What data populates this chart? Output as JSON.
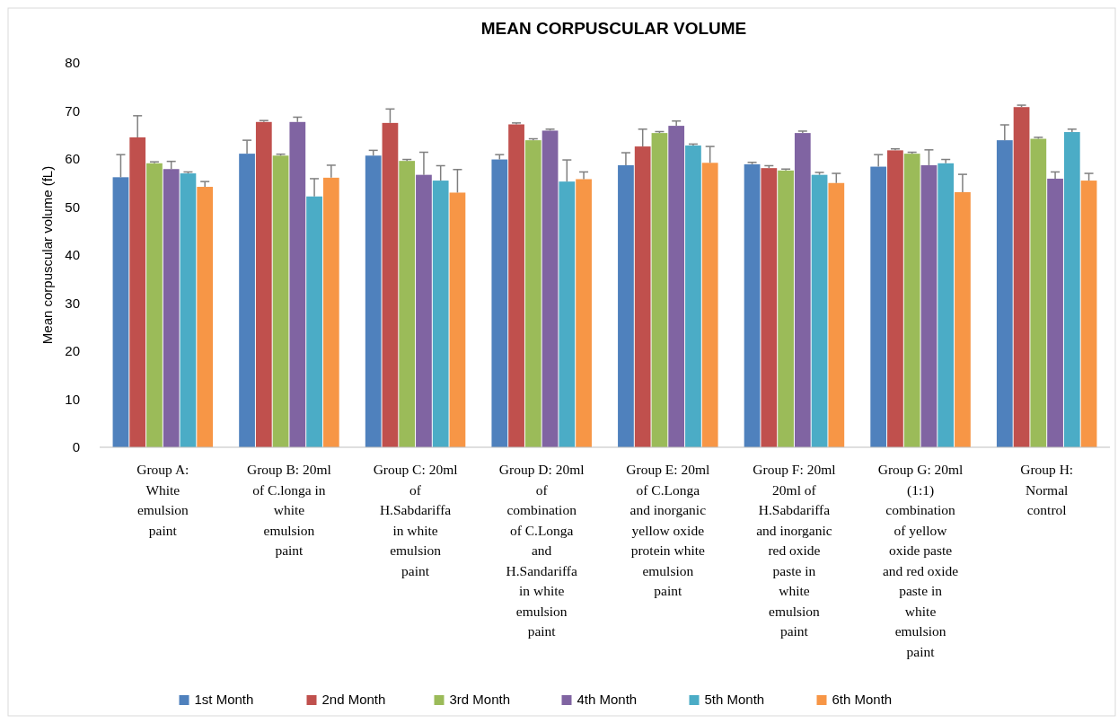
{
  "chart_data": {
    "type": "bar",
    "title": "MEAN CORPUSCULAR VOLUME",
    "ylabel": "Mean corpuscular volume (fL)",
    "categories": [
      "Group A: White emulsion paint",
      "Group B: 20ml of C.longa in white emulsion paint",
      "Group C: 20ml of H.Sabdariffa in white emulsion paint",
      "Group D: 20ml of combination of C.Longa and H.Sandariffa in white emulsion paint",
      "Group E: 20ml of C.Longa and inorganic yellow oxide protein white emulsion paint",
      "Group F: 20ml 20ml of H.Sabdariffa and inorganic red oxide paste in white emulsion paint",
      "Group G: 20ml (1:1) combination of yellow oxide paste and red oxide paste in white emulsion paint",
      "Group H: Normal control"
    ],
    "series": [
      {
        "name": "1st Month",
        "color": "#4f81bd",
        "values": [
          56.2,
          61.1,
          60.7,
          59.9,
          58.7,
          58.9,
          58.4,
          63.9
        ],
        "errors": [
          4.7,
          2.8,
          1.1,
          1.0,
          2.6,
          0.4,
          2.5,
          3.2
        ]
      },
      {
        "name": "2nd Month",
        "color": "#c0504d",
        "values": [
          64.5,
          67.7,
          67.5,
          67.2,
          62.6,
          58.1,
          61.8,
          70.8
        ],
        "errors": [
          4.5,
          0.3,
          2.9,
          0.3,
          3.6,
          0.5,
          0.3,
          0.4
        ]
      },
      {
        "name": "3rd Month",
        "color": "#9bbb59",
        "values": [
          59.1,
          60.7,
          59.6,
          63.9,
          65.4,
          57.6,
          61.1,
          64.2
        ],
        "errors": [
          0.3,
          0.3,
          0.3,
          0.3,
          0.3,
          0.3,
          0.3,
          0.3
        ]
      },
      {
        "name": "4th Month",
        "color": "#8064a2",
        "values": [
          57.9,
          67.7,
          56.7,
          65.9,
          66.9,
          65.4,
          58.7,
          55.9
        ],
        "errors": [
          1.6,
          1.0,
          4.7,
          0.3,
          1.0,
          0.4,
          3.2,
          1.4
        ]
      },
      {
        "name": "5th Month",
        "color": "#4bacc6",
        "values": [
          57.0,
          52.2,
          55.5,
          55.3,
          62.8,
          56.7,
          59.1,
          65.6
        ],
        "errors": [
          0.3,
          3.7,
          3.1,
          4.5,
          0.3,
          0.5,
          0.8,
          0.6
        ]
      },
      {
        "name": "6th Month",
        "color": "#f79646",
        "values": [
          54.2,
          56.1,
          53.0,
          55.8,
          59.2,
          55.0,
          53.1,
          55.5
        ],
        "errors": [
          1.1,
          2.6,
          4.8,
          1.5,
          3.4,
          2.0,
          3.7,
          1.5
        ]
      }
    ],
    "ylim": [
      0,
      80
    ],
    "yticks": [
      0,
      10,
      20,
      30,
      40,
      50,
      60,
      70,
      80
    ],
    "grid": false,
    "legend": "bottom"
  }
}
